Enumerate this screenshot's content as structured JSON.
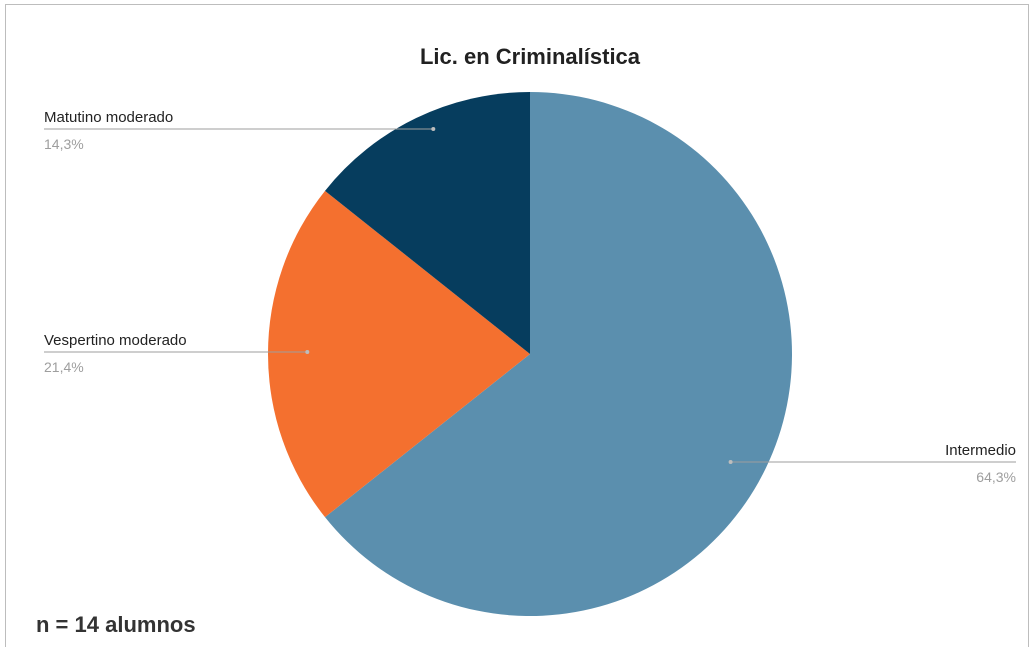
{
  "chart_data": {
    "type": "pie",
    "title": "Lic. en Criminalística",
    "slices": [
      {
        "label": "Intermedio",
        "value": 64.3,
        "value_label": "64,3%",
        "color": "#5b8fae"
      },
      {
        "label": "Vespertino moderado",
        "value": 21.4,
        "value_label": "21,4%",
        "color": "#f4702f"
      },
      {
        "label": "Matutino moderado",
        "value": 14.3,
        "value_label": "14,3%",
        "color": "#063d5e"
      }
    ],
    "start_angle": "12 o'clock",
    "direction": "clockwise",
    "legend": "none (labels outside slices)"
  },
  "footnote": "n = 14 alumnos"
}
